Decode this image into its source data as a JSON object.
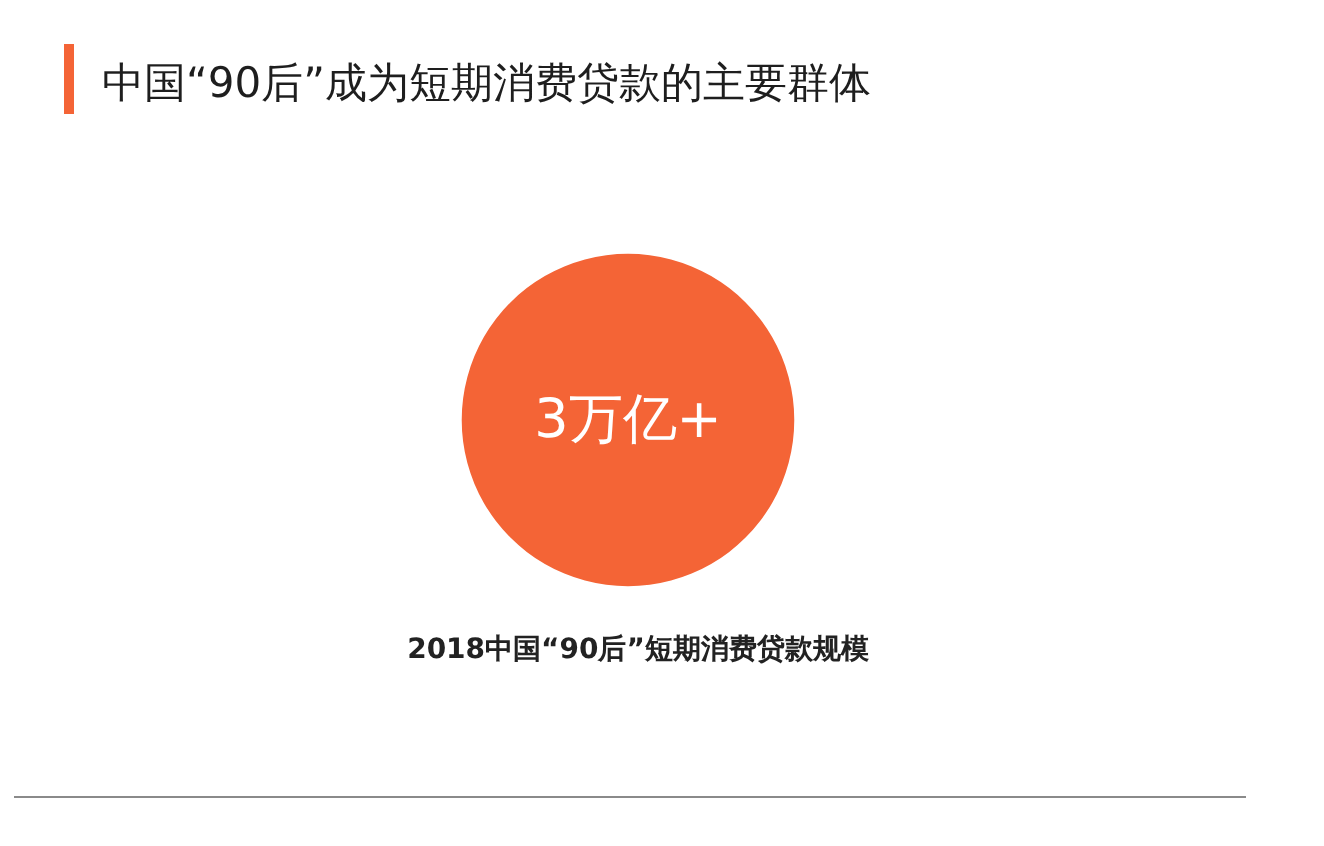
{
  "chart_data": {
    "type": "other",
    "title": "中国“90后”成为短期消费贷款的主要群体",
    "categories": [
      "2018中国“90后”短期消费贷款规模"
    ],
    "values": [
      3
    ],
    "value_labels": [
      "3万亿+"
    ],
    "colors": [
      "#f46436"
    ]
  }
}
